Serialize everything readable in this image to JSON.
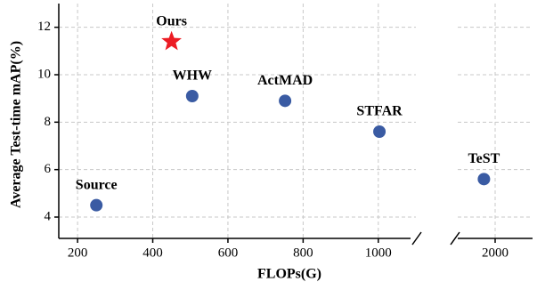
{
  "chart_data": {
    "type": "scatter",
    "xlabel": "FLOPs(G)",
    "ylabel": "Average Test-time mAP(%)",
    "xlim": [
      150,
      1100
    ],
    "xticks": [
      200,
      400,
      600,
      800,
      1000
    ],
    "x2lim": [
      1900,
      2100
    ],
    "x2ticks": [
      2000
    ],
    "ylim": [
      3.1,
      13
    ],
    "yticks": [
      4,
      6,
      8,
      10,
      12
    ],
    "grid": true,
    "series": [
      {
        "name": "Source",
        "color": "#3a5ba3",
        "marker": "circle",
        "x": [
          250
        ],
        "values": [
          4.5
        ]
      },
      {
        "name": "Ours",
        "color": "#ec1c24",
        "marker": "star",
        "x": [
          450
        ],
        "values": [
          11.4
        ]
      },
      {
        "name": "WHW",
        "color": "#3a5ba3",
        "marker": "circle",
        "x": [
          505
        ],
        "values": [
          9.1
        ]
      },
      {
        "name": "ActMAD",
        "color": "#3a5ba3",
        "marker": "circle",
        "x": [
          752
        ],
        "values": [
          8.9
        ]
      },
      {
        "name": "STFAR",
        "color": "#3a5ba3",
        "marker": "circle",
        "x": [
          1003
        ],
        "values": [
          7.6
        ]
      },
      {
        "name": "TeST",
        "color": "#3a5ba3",
        "marker": "circle",
        "x": [
          1970
        ],
        "values": [
          5.6
        ],
        "axis": "x2"
      }
    ]
  }
}
